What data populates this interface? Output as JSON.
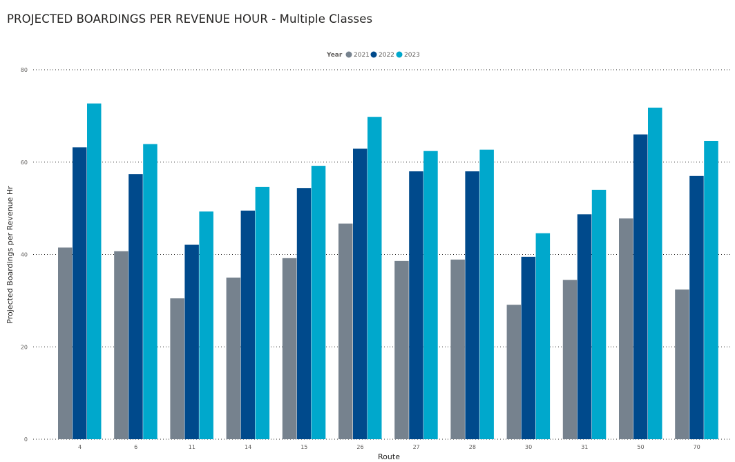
{
  "page": {
    "title": "PROJECTED BOARDINGS PER REVENUE HOUR - Multiple Classes"
  },
  "chart_data": {
    "type": "bar",
    "title": "PROJECTED BOARDINGS PER REVENUE HOUR - Multiple Classes",
    "xlabel": "Route",
    "ylabel": "Projected Boardings per Revenue Hr",
    "ylim": [
      0,
      80
    ],
    "yticks": [
      0,
      20,
      40,
      60,
      80
    ],
    "grid": true,
    "legend": {
      "title": "Year",
      "position": "top-center"
    },
    "categories": [
      "4",
      "6",
      "11",
      "14",
      "15",
      "26",
      "27",
      "28",
      "30",
      "31",
      "50",
      "70"
    ],
    "series": [
      {
        "name": "2021",
        "color": "#76828e",
        "values": [
          41.5,
          40.7,
          30.5,
          35.0,
          39.2,
          46.7,
          38.6,
          38.9,
          29.1,
          34.5,
          47.8,
          32.4
        ]
      },
      {
        "name": "2022",
        "color": "#004a8c",
        "values": [
          63.2,
          57.4,
          42.1,
          49.5,
          54.4,
          62.9,
          58.0,
          58.0,
          39.5,
          48.7,
          66.0,
          57.0
        ]
      },
      {
        "name": "2023",
        "color": "#00a8cc",
        "values": [
          72.7,
          63.9,
          49.3,
          54.6,
          59.2,
          69.8,
          62.4,
          62.7,
          44.6,
          54.0,
          71.8,
          64.6
        ]
      }
    ]
  }
}
